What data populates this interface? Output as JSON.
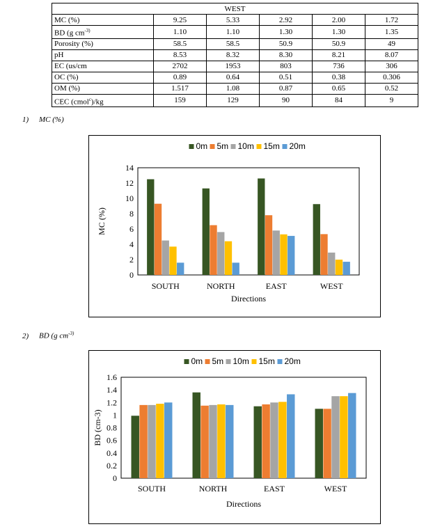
{
  "table": {
    "title": "WEST",
    "rows": [
      {
        "label": "MC (%)",
        "values": [
          "9.25",
          "5.33",
          "2.92",
          "2.00",
          "1.72"
        ]
      },
      {
        "label": "BD  (g cm",
        "sup": "-3)",
        "values": [
          "1.10",
          "1.10",
          "1.30",
          "1.30",
          "1.35"
        ]
      },
      {
        "label": "Porosity (%)",
        "values": [
          "58.5",
          "58.5",
          "50.9",
          "50.9",
          "49"
        ]
      },
      {
        "label": "pH",
        "values": [
          "8.53",
          "8.32",
          "8.30",
          "8.21",
          "8.07"
        ]
      },
      {
        "label": "EC  (us/cm",
        "values": [
          "2702",
          "1953",
          "803",
          "736",
          "306"
        ]
      },
      {
        "label": "OC (%)",
        "values": [
          "0.89",
          "0.64",
          "0.51",
          "0.38",
          "0.306"
        ]
      },
      {
        "label": "OM (%)",
        "values": [
          "1.517",
          "1.08",
          "0.87",
          "0.65",
          "0.52"
        ]
      },
      {
        "label": "CEC (cmol",
        "sup": "c",
        "label_tail": ")/kg",
        "values": [
          "159",
          "129",
          "90",
          "84",
          "9"
        ]
      }
    ]
  },
  "headings": [
    {
      "number": "1)",
      "text": "MC (%)",
      "sup": ""
    },
    {
      "number": "2)",
      "text": "BD (g cm",
      "sup": "-3)"
    }
  ],
  "colors": {
    "0m": "#375623",
    "5m": "#ED7D31",
    "10m": "#A5A5A5",
    "15m": "#FFC000",
    "20m": "#5B9BD5"
  },
  "chart_data": [
    {
      "type": "bar",
      "categories": [
        "SOUTH",
        "NORTH",
        "EAST",
        "WEST"
      ],
      "series": [
        {
          "name": "0m",
          "values": [
            12.5,
            11.3,
            12.6,
            9.25
          ]
        },
        {
          "name": "5m",
          "values": [
            9.3,
            6.5,
            7.8,
            5.33
          ]
        },
        {
          "name": "10m",
          "values": [
            4.5,
            5.6,
            5.8,
            2.92
          ]
        },
        {
          "name": "15m",
          "values": [
            3.7,
            4.4,
            5.3,
            2.0
          ]
        },
        {
          "name": "20m",
          "values": [
            1.6,
            1.6,
            5.1,
            1.72
          ]
        }
      ],
      "xlabel": "Directions",
      "ylabel": "MC (%)",
      "ylim": [
        0,
        14
      ],
      "yticks": [
        "0",
        "2",
        "4",
        "6",
        "8",
        "10",
        "12",
        "14"
      ],
      "legend": "top",
      "grid": false
    },
    {
      "type": "bar",
      "categories": [
        "SOUTH",
        "NORTH",
        "EAST",
        "WEST"
      ],
      "series": [
        {
          "name": "0m",
          "values": [
            0.99,
            1.36,
            1.14,
            1.1
          ]
        },
        {
          "name": "5m",
          "values": [
            1.16,
            1.15,
            1.17,
            1.1
          ]
        },
        {
          "name": "10m",
          "values": [
            1.16,
            1.16,
            1.2,
            1.3
          ]
        },
        {
          "name": "15m",
          "values": [
            1.18,
            1.17,
            1.21,
            1.3
          ]
        },
        {
          "name": "20m",
          "values": [
            1.2,
            1.16,
            1.33,
            1.35
          ]
        }
      ],
      "xlabel": "Directions",
      "ylabel": "BD (cm-3)",
      "ylim": [
        0,
        1.6
      ],
      "yticks": [
        "0",
        "0.2",
        "0.4",
        "0.6",
        "0.8",
        "1",
        "1.2",
        "1.4",
        "1.6"
      ],
      "legend": "top",
      "grid": false
    }
  ]
}
